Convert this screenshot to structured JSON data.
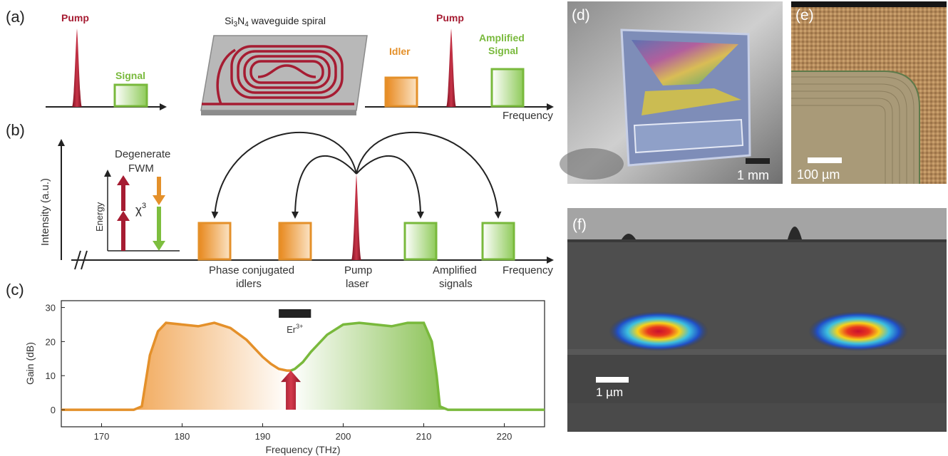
{
  "panels": {
    "a": "(a)",
    "b": "(b)",
    "c": "(c)",
    "d": "(d)",
    "e": "(e)",
    "f": "(f)"
  },
  "panel_a": {
    "pump_left": "Pump",
    "signal": "Signal",
    "spiral_title_base": "Si",
    "spiral_title_sub1": "3",
    "spiral_title_mid": "N",
    "spiral_title_sub2": "4",
    "spiral_title_rest": " waveguide spiral",
    "idler": "Idler",
    "pump_right": "Pump",
    "amplified_line1": "Amplified",
    "amplified_line2": "Signal",
    "frequency": "Frequency"
  },
  "panel_b": {
    "ylabel": "Intensity (a.u.)",
    "fwm_line1": "Degenerate",
    "fwm_line2": "FWM",
    "energy": "Energy",
    "chi_base": "χ",
    "chi_sup": "3",
    "idlers_line1": "Phase conjugated",
    "idlers_line2": "idlers",
    "pump_line1": "Pump",
    "pump_line2": "laser",
    "signals_line1": "Amplified",
    "signals_line2": "signals",
    "frequency": "Frequency"
  },
  "chart_data": {
    "type": "line",
    "xlabel": "Frequency (THz)",
    "ylabel": "Gain (dB)",
    "xlim": [
      165,
      225
    ],
    "ylim": [
      -5,
      32
    ],
    "xticks": [
      "170",
      "180",
      "190",
      "200",
      "210",
      "220"
    ],
    "yticks": [
      "0",
      "10",
      "20",
      "30"
    ],
    "er_label_base": "Er",
    "er_label_sup": "3+",
    "er_band": [
      192,
      196
    ],
    "pump_frequency": 193.5,
    "x": [
      165,
      174,
      175,
      176,
      177,
      178,
      180,
      182,
      184,
      186,
      188,
      190,
      191,
      192,
      193,
      193.5,
      194,
      195,
      196,
      198,
      200,
      202,
      204,
      206,
      208,
      210,
      211,
      211.6,
      212,
      213,
      225
    ],
    "y": [
      0,
      0,
      1,
      16,
      23,
      25.5,
      25,
      24.5,
      25.5,
      24,
      20.5,
      15.5,
      13.5,
      12,
      11.5,
      11.5,
      12,
      14,
      17,
      22,
      25,
      25.5,
      25,
      24.5,
      25.5,
      25.5,
      20,
      10,
      1,
      0,
      0
    ],
    "colors": {
      "idler": "#E4902A",
      "signal": "#79B93C",
      "pump": "#C01E30"
    }
  },
  "photos": {
    "d_scale": "1 mm",
    "e_scale": "100 µm",
    "f_scale": "1 µm"
  },
  "colors": {
    "pump": "#A61C32",
    "idler": "#E4902A",
    "signal": "#7DBE3E",
    "axis": "#222222"
  }
}
